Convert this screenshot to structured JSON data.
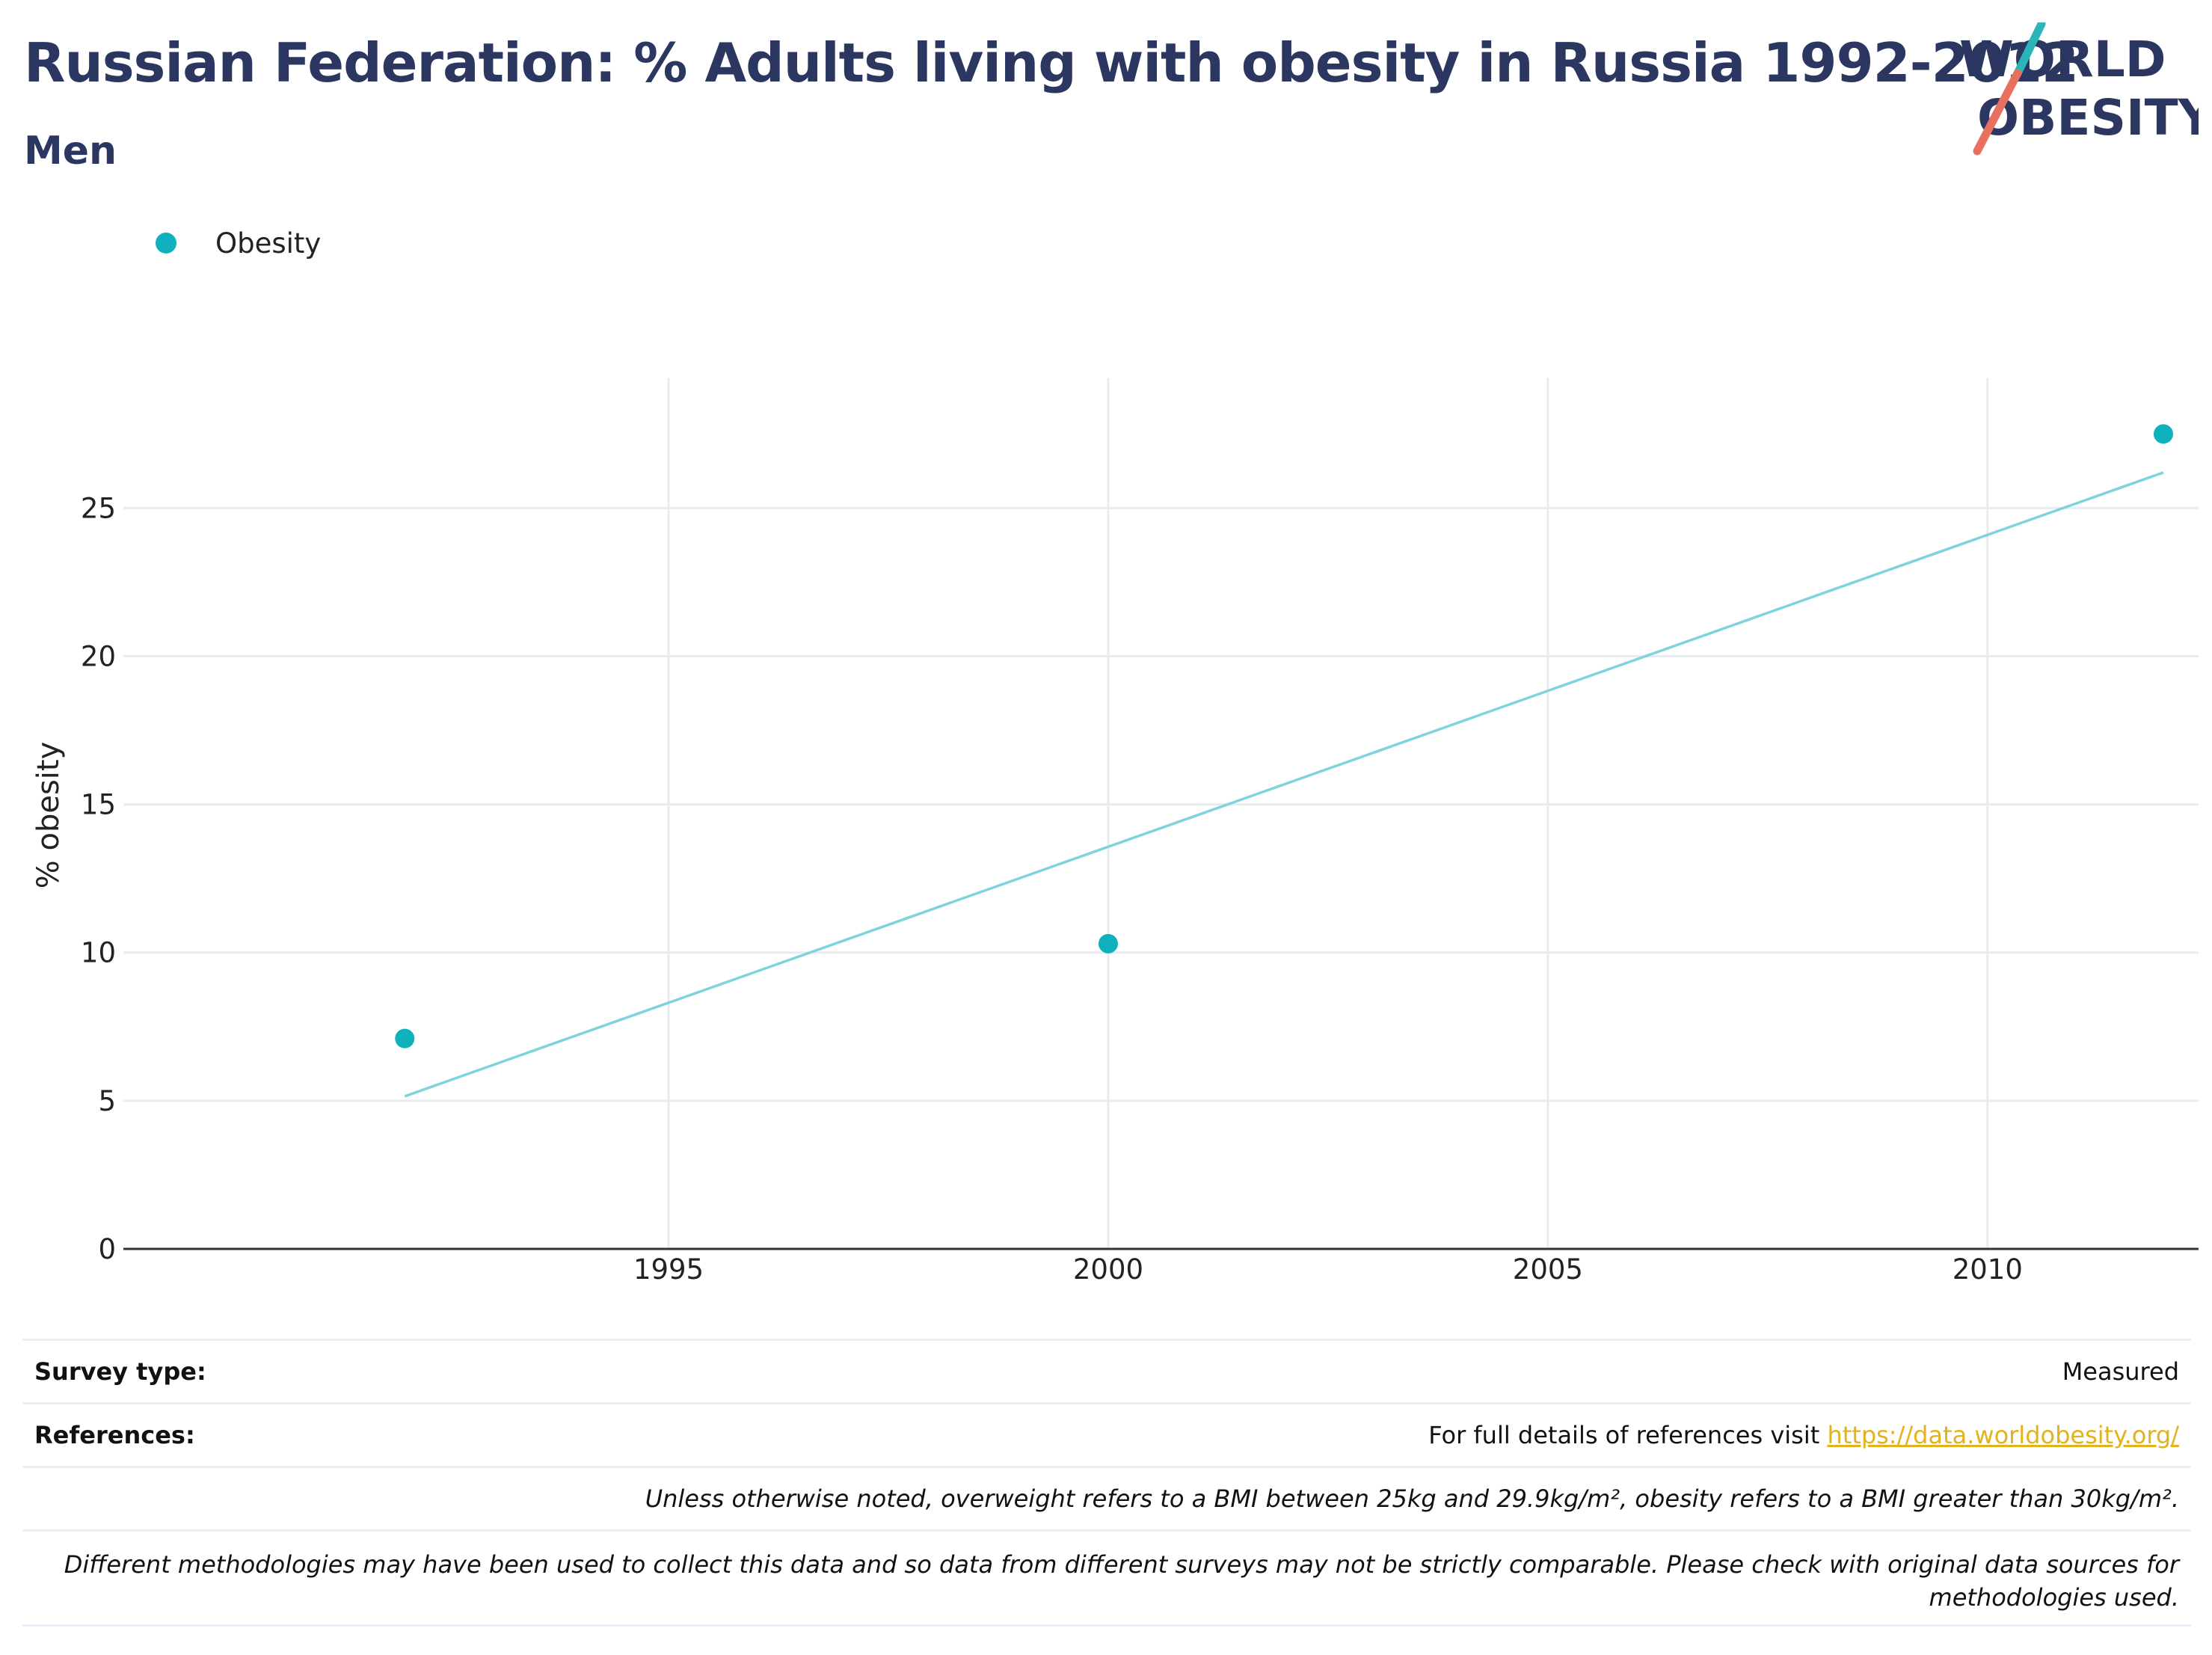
{
  "header": {
    "title": "Russian Federation: % Adults living with obesity in Russia 1992-2012",
    "subtitle": "Men",
    "logo_line1": "WORLD",
    "logo_line2": "OBESITY"
  },
  "colors": {
    "title": "#2b3760",
    "series": "#0fb1bd",
    "trend": "#7fd4dc",
    "link": "#e3b21d",
    "logo_teal": "#2cb5b9",
    "logo_coral": "#e8705e"
  },
  "chart_data": {
    "type": "scatter",
    "title": "Russian Federation: % Adults living with obesity in Russia 1992-2012",
    "subtitle": "Men",
    "xlabel": "",
    "ylabel": "% obesity",
    "xlim": [
      1988.8,
      2012.4
    ],
    "ylim": [
      0,
      29.4
    ],
    "xticks": [
      1995,
      2000,
      2005,
      2010
    ],
    "yticks": [
      0,
      5,
      10,
      15,
      20,
      25
    ],
    "grid": true,
    "legend": "top-left",
    "series": [
      {
        "name": "Obesity",
        "x": [
          1992,
          2000,
          2012
        ],
        "y": [
          7.1,
          10.3,
          27.5
        ]
      }
    ],
    "trendline": {
      "x": [
        1992,
        2012
      ],
      "y": [
        5.15,
        26.2
      ]
    }
  },
  "footer": {
    "survey_label": "Survey type:",
    "survey_value": "Measured",
    "references_label": "References:",
    "references_text": "For full details of references visit ",
    "references_link": "https://data.worldobesity.org/",
    "note_bmi": "Unless otherwise noted, overweight refers to a BMI between 25kg and 29.9kg/m², obesity refers to a BMI greater than 30kg/m².",
    "note_method_line1": "Different methodologies may have been used to collect this data and so data from different surveys may not be strictly comparable. Please check with original data sources for",
    "note_method_line2": "methodologies used."
  }
}
